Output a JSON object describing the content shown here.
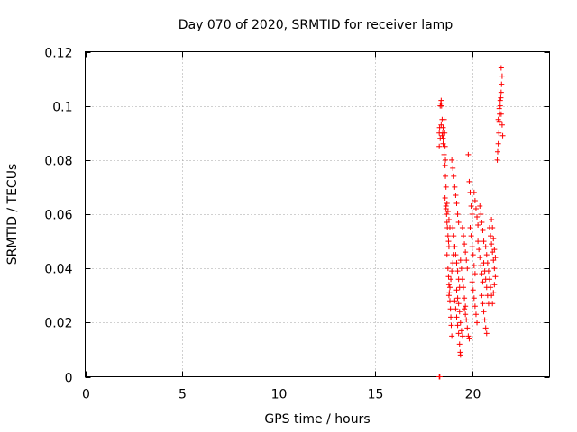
{
  "chart_data": {
    "type": "scatter",
    "title": "Day 070 of 2020, SRMTID for receiver lamp",
    "xlabel": "GPS time / hours",
    "ylabel": "SRMTID / TECUs",
    "xlim": [
      0,
      24
    ],
    "ylim": [
      0,
      0.12
    ],
    "xticks": [
      0,
      5,
      10,
      15,
      20
    ],
    "xtick_labels": [
      "0",
      "5",
      "10",
      "15",
      "20"
    ],
    "yticks": [
      0,
      0.02,
      0.04,
      0.06,
      0.08,
      0.1,
      0.12
    ],
    "ytick_labels": [
      "0",
      "0.02",
      "0.04",
      "0.06",
      "0.08",
      "0.1",
      "0.12"
    ],
    "grid": true,
    "marker": "plus",
    "color": "#ff0000",
    "series": [
      {
        "name": "SRMTID",
        "points": [
          [
            18.3,
            0.0
          ],
          [
            18.33,
            0.0
          ],
          [
            18.3,
            0.09
          ],
          [
            18.32,
            0.092
          ],
          [
            18.35,
            0.1
          ],
          [
            18.38,
            0.101
          ],
          [
            18.4,
            0.102
          ],
          [
            18.42,
            0.1
          ],
          [
            18.45,
            0.095
          ],
          [
            18.48,
            0.09
          ],
          [
            18.5,
            0.088
          ],
          [
            18.3,
            0.085
          ],
          [
            18.35,
            0.088
          ],
          [
            18.4,
            0.093
          ],
          [
            18.45,
            0.089
          ],
          [
            18.5,
            0.086
          ],
          [
            18.55,
            0.082
          ],
          [
            18.6,
            0.078
          ],
          [
            18.62,
            0.074
          ],
          [
            18.65,
            0.07
          ],
          [
            18.5,
            0.092
          ],
          [
            18.55,
            0.095
          ],
          [
            18.58,
            0.09
          ],
          [
            18.6,
            0.085
          ],
          [
            18.62,
            0.08
          ],
          [
            18.6,
            0.066
          ],
          [
            18.65,
            0.063
          ],
          [
            18.68,
            0.06
          ],
          [
            18.7,
            0.057
          ],
          [
            18.72,
            0.055
          ],
          [
            18.75,
            0.052
          ],
          [
            18.78,
            0.05
          ],
          [
            18.8,
            0.048
          ],
          [
            18.65,
            0.062
          ],
          [
            18.7,
            0.064
          ],
          [
            18.75,
            0.061
          ],
          [
            18.8,
            0.058
          ],
          [
            18.85,
            0.055
          ],
          [
            18.7,
            0.045
          ],
          [
            18.75,
            0.04
          ],
          [
            18.78,
            0.037
          ],
          [
            18.8,
            0.034
          ],
          [
            18.82,
            0.031
          ],
          [
            18.85,
            0.028
          ],
          [
            18.88,
            0.025
          ],
          [
            18.9,
            0.022
          ],
          [
            18.92,
            0.019
          ],
          [
            18.95,
            0.015
          ],
          [
            18.8,
            0.03
          ],
          [
            18.85,
            0.033
          ],
          [
            18.9,
            0.036
          ],
          [
            18.95,
            0.039
          ],
          [
            19.0,
            0.042
          ],
          [
            19.05,
            0.045
          ],
          [
            19.1,
            0.048
          ],
          [
            18.95,
            0.08
          ],
          [
            19.0,
            0.077
          ],
          [
            19.05,
            0.074
          ],
          [
            19.1,
            0.07
          ],
          [
            19.15,
            0.067
          ],
          [
            19.2,
            0.064
          ],
          [
            19.25,
            0.06
          ],
          [
            19.3,
            0.057
          ],
          [
            19.0,
            0.055
          ],
          [
            19.05,
            0.052
          ],
          [
            19.1,
            0.048
          ],
          [
            19.15,
            0.045
          ],
          [
            19.2,
            0.042
          ],
          [
            19.25,
            0.039
          ],
          [
            19.3,
            0.036
          ],
          [
            19.35,
            0.033
          ],
          [
            19.1,
            0.028
          ],
          [
            19.15,
            0.025
          ],
          [
            19.2,
            0.022
          ],
          [
            19.25,
            0.019
          ],
          [
            19.3,
            0.016
          ],
          [
            19.35,
            0.012
          ],
          [
            19.38,
            0.009
          ],
          [
            19.4,
            0.008
          ],
          [
            19.2,
            0.032
          ],
          [
            19.25,
            0.029
          ],
          [
            19.3,
            0.027
          ],
          [
            19.35,
            0.024
          ],
          [
            19.4,
            0.02
          ],
          [
            19.45,
            0.017
          ],
          [
            19.5,
            0.015
          ],
          [
            19.4,
            0.043
          ],
          [
            19.45,
            0.04
          ],
          [
            19.5,
            0.036
          ],
          [
            19.55,
            0.033
          ],
          [
            19.6,
            0.029
          ],
          [
            19.65,
            0.026
          ],
          [
            19.5,
            0.055
          ],
          [
            19.55,
            0.052
          ],
          [
            19.6,
            0.049
          ],
          [
            19.65,
            0.046
          ],
          [
            19.7,
            0.043
          ],
          [
            19.75,
            0.04
          ],
          [
            19.6,
            0.025
          ],
          [
            19.65,
            0.023
          ],
          [
            19.7,
            0.021
          ],
          [
            19.75,
            0.018
          ],
          [
            19.8,
            0.015
          ],
          [
            19.85,
            0.014
          ],
          [
            19.8,
            0.082
          ],
          [
            19.85,
            0.072
          ],
          [
            19.9,
            0.068
          ],
          [
            19.95,
            0.063
          ],
          [
            20.0,
            0.06
          ],
          [
            19.9,
            0.055
          ],
          [
            19.95,
            0.052
          ],
          [
            20.0,
            0.048
          ],
          [
            20.05,
            0.045
          ],
          [
            20.1,
            0.041
          ],
          [
            20.15,
            0.038
          ],
          [
            20.0,
            0.035
          ],
          [
            20.05,
            0.032
          ],
          [
            20.1,
            0.029
          ],
          [
            20.15,
            0.026
          ],
          [
            20.2,
            0.023
          ],
          [
            20.25,
            0.02
          ],
          [
            20.1,
            0.068
          ],
          [
            20.15,
            0.065
          ],
          [
            20.2,
            0.062
          ],
          [
            20.25,
            0.059
          ],
          [
            20.3,
            0.056
          ],
          [
            20.3,
            0.05
          ],
          [
            20.35,
            0.047
          ],
          [
            20.4,
            0.044
          ],
          [
            20.45,
            0.041
          ],
          [
            20.5,
            0.038
          ],
          [
            20.55,
            0.035
          ],
          [
            20.4,
            0.063
          ],
          [
            20.45,
            0.06
          ],
          [
            20.5,
            0.057
          ],
          [
            20.55,
            0.054
          ],
          [
            20.6,
            0.05
          ],
          [
            20.5,
            0.03
          ],
          [
            20.55,
            0.027
          ],
          [
            20.6,
            0.024
          ],
          [
            20.65,
            0.021
          ],
          [
            20.7,
            0.018
          ],
          [
            20.75,
            0.016
          ],
          [
            20.6,
            0.042
          ],
          [
            20.65,
            0.039
          ],
          [
            20.7,
            0.036
          ],
          [
            20.75,
            0.033
          ],
          [
            20.8,
            0.03
          ],
          [
            20.85,
            0.027
          ],
          [
            20.7,
            0.048
          ],
          [
            20.75,
            0.045
          ],
          [
            20.8,
            0.042
          ],
          [
            20.85,
            0.039
          ],
          [
            20.9,
            0.036
          ],
          [
            20.9,
            0.055
          ],
          [
            20.95,
            0.052
          ],
          [
            21.0,
            0.049
          ],
          [
            21.05,
            0.046
          ],
          [
            21.1,
            0.043
          ],
          [
            21.15,
            0.04
          ],
          [
            21.2,
            0.037
          ],
          [
            21.0,
            0.058
          ],
          [
            21.05,
            0.055
          ],
          [
            21.1,
            0.051
          ],
          [
            21.15,
            0.047
          ],
          [
            21.2,
            0.044
          ],
          [
            20.95,
            0.033
          ],
          [
            21.0,
            0.03
          ],
          [
            21.05,
            0.027
          ],
          [
            21.1,
            0.031
          ],
          [
            21.15,
            0.034
          ],
          [
            21.3,
            0.08
          ],
          [
            21.32,
            0.083
          ],
          [
            21.35,
            0.086
          ],
          [
            21.38,
            0.09
          ],
          [
            21.4,
            0.094
          ],
          [
            21.42,
            0.097
          ],
          [
            21.45,
            0.1
          ],
          [
            21.48,
            0.103
          ],
          [
            21.5,
            0.105
          ],
          [
            21.52,
            0.108
          ],
          [
            21.55,
            0.111
          ],
          [
            21.5,
            0.114
          ],
          [
            21.35,
            0.095
          ],
          [
            21.4,
            0.099
          ],
          [
            21.45,
            0.102
          ],
          [
            21.5,
            0.097
          ],
          [
            21.55,
            0.093
          ],
          [
            21.58,
            0.089
          ]
        ]
      }
    ]
  }
}
